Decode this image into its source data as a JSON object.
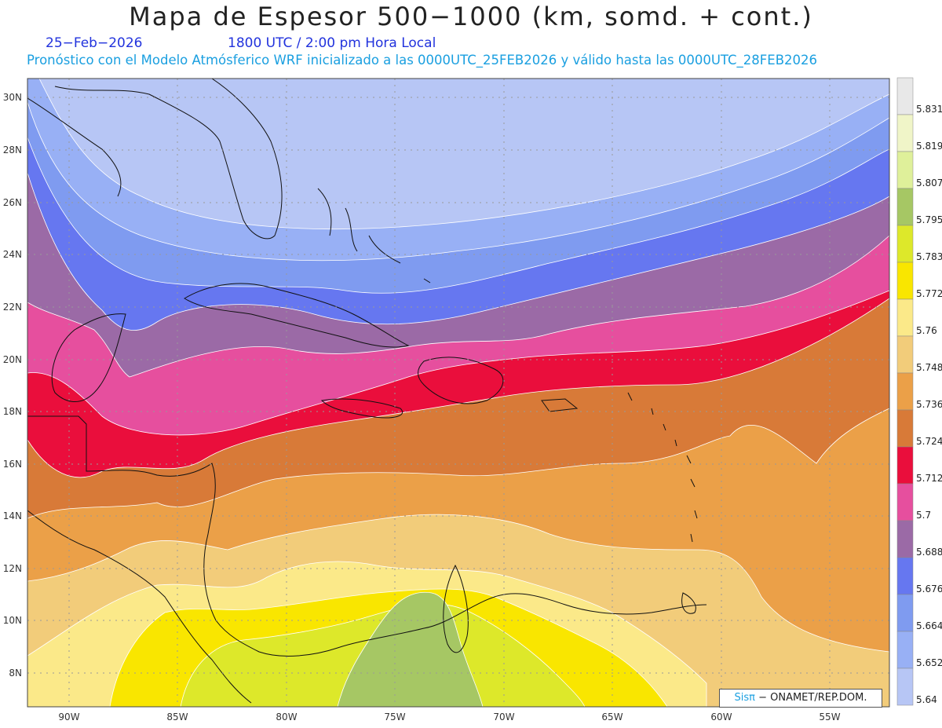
{
  "title": "Mapa de Espesor 500−1000 (km, somd. + cont.)",
  "date": "25−Feb−2026",
  "time": "1800 UTC / 2:00 pm Hora Local",
  "forecast": "Pronóstico con el Modelo Atmósferico WRF inicializado a las 0000UTC_25FEB2026 y válido hasta las  0000UTC_28FEB2026",
  "lat_labels": [
    "30N",
    "28N",
    "26N",
    "24N",
    "22N",
    "20N",
    "18N",
    "16N",
    "14N",
    "12N",
    "10N",
    "8N"
  ],
  "lon_labels": [
    "90W",
    "85W",
    "80W",
    "75W",
    "70W",
    "65W",
    "60W",
    "55W"
  ],
  "colorbar": {
    "labels": [
      "5.831",
      "5.819",
      "5.807",
      "5.795",
      "5.783",
      "5.772",
      "5.76",
      "5.748",
      "5.736",
      "5.724",
      "5.712",
      "5.7",
      "5.688",
      "5.676",
      "5.664",
      "5.652",
      "5.64"
    ],
    "colors": [
      "#e8e8e8",
      "#f0f5c8",
      "#dff09a",
      "#a6c764",
      "#dde82a",
      "#f9e600",
      "#fbe989",
      "#f2cc7a",
      "#eba048",
      "#d87a38",
      "#ea0e3c",
      "#e64f9e",
      "#9b6aa6",
      "#6677f0",
      "#7f9bf0",
      "#98b0f5",
      "#b7c6f5"
    ]
  },
  "credit": {
    "brand": "Sisπ",
    "text": " − ONAMET/REP.DOM."
  }
}
